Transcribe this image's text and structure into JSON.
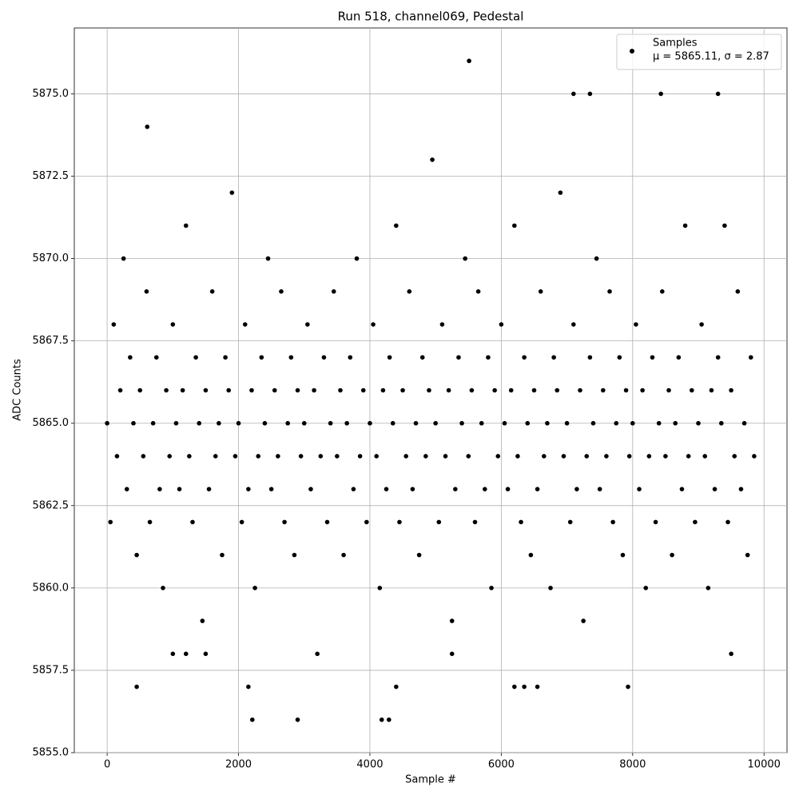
{
  "chart_data": {
    "type": "scatter",
    "title": "Run 518, channel069, Pedestal",
    "x_label": "Sample #",
    "y_label": "ADC Counts",
    "xlim": [
      -500,
      10350
    ],
    "ylim": [
      5855,
      5877
    ],
    "xticks": [
      0,
      2000,
      4000,
      6000,
      8000,
      10000
    ],
    "yticks": [
      {
        "value": 5855,
        "label": "5855.0"
      },
      5857.5,
      {
        "value": 5860,
        "label": "5860.0"
      },
      5862.5,
      {
        "value": 5865,
        "label": "5865.0"
      },
      5867.5,
      {
        "value": 5870,
        "label": "5870.0"
      },
      5872.5,
      {
        "value": 5875,
        "label": "5875.0"
      }
    ],
    "grid": true,
    "legend": "upper right",
    "series": [
      {
        "name": "Samples",
        "stats": "μ = 5865.11, σ = 2.87",
        "color": "#000000",
        "x": [
          0,
          50,
          100,
          150,
          200,
          250,
          300,
          350,
          400,
          450,
          500,
          550,
          600,
          650,
          700,
          750,
          800,
          850,
          900,
          950,
          1000,
          1050,
          1100,
          1150,
          1200,
          1250,
          1300,
          1350,
          1400,
          1450,
          1500,
          1550,
          1600,
          1650,
          1700,
          1750,
          1800,
          1850,
          1900,
          1950,
          2000,
          2050,
          2100,
          2150,
          2200,
          2250,
          2300,
          2350,
          2400,
          2450,
          2500,
          2550,
          2600,
          2650,
          2700,
          2750,
          2800,
          2850,
          2900,
          2950,
          3000,
          3050,
          3100,
          3150,
          3200,
          3250,
          3300,
          3350,
          3400,
          3450,
          3500,
          3550,
          3600,
          3650,
          3700,
          3750,
          3800,
          3850,
          3900,
          3950,
          4000,
          4050,
          4100,
          4150,
          4200,
          4250,
          4300,
          4350,
          4400,
          4450,
          4500,
          4550,
          4600,
          4650,
          4700,
          4750,
          4800,
          4850,
          4900,
          4950,
          5000,
          5050,
          5100,
          5150,
          5200,
          5250,
          5300,
          5350,
          5400,
          5450,
          5500,
          5550,
          5600,
          5650,
          5700,
          5750,
          5800,
          5850,
          5900,
          5950,
          6000,
          6050,
          6100,
          6150,
          6200,
          6250,
          6300,
          6350,
          6400,
          6450,
          6500,
          6550,
          6600,
          6650,
          6700,
          6750,
          6800,
          6850,
          6900,
          6950,
          7000,
          7050,
          7100,
          7150,
          7200,
          7250,
          7300,
          7350,
          7400,
          7450,
          7500,
          7550,
          7600,
          7650,
          7700,
          7750,
          7800,
          7850,
          7900,
          7950,
          8000,
          8050,
          8100,
          8150,
          8200,
          8250,
          8300,
          8350,
          8400,
          8450,
          8500,
          8550,
          8600,
          8650,
          8700,
          8750,
          8800,
          8850,
          8900,
          8950,
          9000,
          9050,
          9100,
          9150,
          9200,
          9250,
          9300,
          9350,
          9400,
          9450,
          9500,
          9550,
          9600,
          9650,
          9700,
          9750,
          9800,
          9850,
          450,
          2150,
          2210,
          2900,
          4180,
          4290,
          4400,
          5510,
          610,
          7100,
          7350,
          8430,
          9300,
          6200,
          6350,
          6550,
          7930,
          1000,
          1200,
          1500,
          5250,
          9500
        ],
        "y": [
          5865,
          5862,
          5868,
          5864,
          5866,
          5870,
          5863,
          5867,
          5865,
          5861,
          5866,
          5864,
          5869,
          5862,
          5865,
          5867,
          5863,
          5860,
          5866,
          5864,
          5868,
          5865,
          5863,
          5866,
          5871,
          5864,
          5862,
          5867,
          5865,
          5859,
          5866,
          5863,
          5869,
          5864,
          5865,
          5861,
          5867,
          5866,
          5872,
          5864,
          5865,
          5862,
          5868,
          5863,
          5866,
          5860,
          5864,
          5867,
          5865,
          5870,
          5863,
          5866,
          5864,
          5869,
          5862,
          5865,
          5867,
          5861,
          5866,
          5864,
          5865,
          5868,
          5863,
          5866,
          5858,
          5864,
          5867,
          5862,
          5865,
          5869,
          5864,
          5866,
          5861,
          5865,
          5867,
          5863,
          5870,
          5864,
          5866,
          5862,
          5865,
          5868,
          5864,
          5860,
          5866,
          5863,
          5867,
          5865,
          5871,
          5862,
          5866,
          5864,
          5869,
          5863,
          5865,
          5861,
          5867,
          5864,
          5866,
          5873,
          5865,
          5862,
          5868,
          5864,
          5866,
          5859,
          5863,
          5867,
          5865,
          5870,
          5864,
          5866,
          5862,
          5869,
          5865,
          5863,
          5867,
          5860,
          5866,
          5864,
          5868,
          5865,
          5863,
          5866,
          5871,
          5864,
          5862,
          5867,
          5865,
          5861,
          5866,
          5863,
          5869,
          5864,
          5865,
          5860,
          5867,
          5866,
          5872,
          5864,
          5865,
          5862,
          5868,
          5863,
          5866,
          5859,
          5864,
          5867,
          5865,
          5870,
          5863,
          5866,
          5864,
          5869,
          5862,
          5865,
          5867,
          5861,
          5866,
          5864,
          5865,
          5868,
          5863,
          5866,
          5860,
          5864,
          5867,
          5862,
          5865,
          5869,
          5864,
          5866,
          5861,
          5865,
          5867,
          5863,
          5871,
          5864,
          5866,
          5862,
          5865,
          5868,
          5864,
          5860,
          5866,
          5863,
          5867,
          5865,
          5871,
          5862,
          5866,
          5864,
          5869,
          5863,
          5865,
          5861,
          5867,
          5864,
          5857,
          5857,
          5856,
          5856,
          5856,
          5856,
          5857,
          5876,
          5874,
          5875,
          5875,
          5875,
          5875,
          5857,
          5857,
          5857,
          5857,
          5858,
          5858,
          5858,
          5858,
          5858
        ]
      }
    ]
  }
}
